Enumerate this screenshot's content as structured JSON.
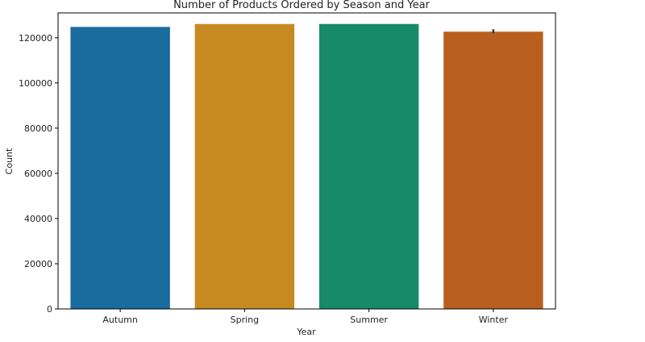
{
  "chart_data": {
    "type": "bar",
    "title": "Number of Products Ordered by Season and Year",
    "xlabel": "Year",
    "ylabel": "Count",
    "categories": [
      "Autumn",
      "Spring",
      "Summer",
      "Winter"
    ],
    "values": [
      124800,
      126100,
      126100,
      122700
    ],
    "error": [
      null,
      null,
      null,
      [
        122000,
        123800
      ]
    ],
    "colors": [
      "#1a6b9e",
      "#c68a20",
      "#178a6a",
      "#b85f1f"
    ],
    "ylim": [
      0,
      131000
    ],
    "yticks": [
      0,
      20000,
      40000,
      60000,
      80000,
      100000,
      120000
    ],
    "ytick_labels": [
      "0",
      "20000",
      "40000",
      "60000",
      "80000",
      "100000",
      "120000"
    ],
    "grid": false
  }
}
